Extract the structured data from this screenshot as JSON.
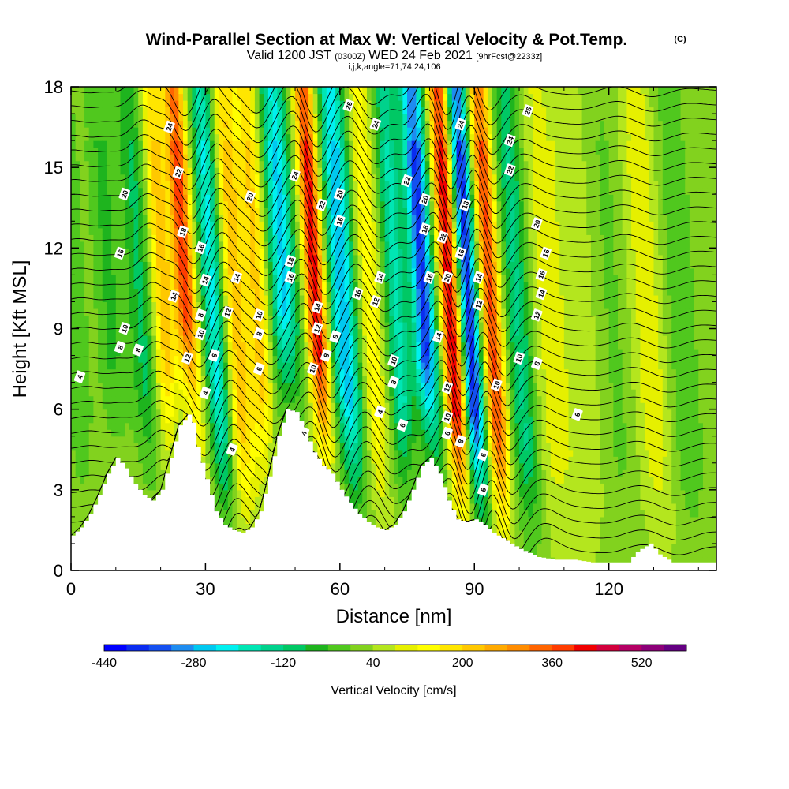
{
  "header": {
    "title": "Wind-Parallel Section at Max W: Vertical Velocity & Pot.Temp.",
    "copyright_mark": "(C)",
    "valid_prefix": "Valid 1200 JST",
    "valid_zulu": "(0300Z)",
    "valid_date": "WED 24 Feb 2021",
    "forecast_info": "[9hrFcst@2233z]",
    "indices": "i,j,k,angle=71,74,24,106"
  },
  "colorbar": {
    "label": "Vertical Velocity [cm/s]",
    "min": -440,
    "step": 40,
    "tick_labels": [
      "-440",
      "-280",
      "-120",
      "40",
      "200",
      "360",
      "520"
    ],
    "colors": [
      "#0000ff",
      "#0a2cf0",
      "#1450f0",
      "#1e8cf0",
      "#00c8f0",
      "#00f0f0",
      "#00e6b4",
      "#00d28c",
      "#00c864",
      "#1eb41e",
      "#50c81e",
      "#82d21e",
      "#b4e61e",
      "#e6f000",
      "#ffff00",
      "#ffe600",
      "#ffc800",
      "#ffaa00",
      "#ff8c00",
      "#ff6400",
      "#ff3c00",
      "#f00000",
      "#d2003c",
      "#b40064",
      "#8c0078",
      "#640082"
    ]
  },
  "chart_data": {
    "type": "heatmap",
    "title": "Wind-Parallel Section at Max W: Vertical Velocity & Pot.Temp.",
    "xlabel": "Distance [nm]",
    "ylabel": "Height [Kft MSL]",
    "xlim": [
      0,
      144
    ],
    "ylim": [
      0,
      18
    ],
    "x_ticks": [
      0,
      30,
      60,
      90,
      120
    ],
    "y_ticks": [
      0,
      3,
      6,
      9,
      12,
      15,
      18
    ],
    "fill_variable": "Vertical Velocity [cm/s]",
    "contour_variable": "Pot.Temp.",
    "terrain_kft": [
      [
        0,
        1.3
      ],
      [
        2,
        1.6
      ],
      [
        4,
        2.1
      ],
      [
        6,
        2.8
      ],
      [
        8,
        3.6
      ],
      [
        10,
        4.2
      ],
      [
        12,
        3.8
      ],
      [
        14,
        3.2
      ],
      [
        16,
        2.8
      ],
      [
        18,
        2.6
      ],
      [
        20,
        3.0
      ],
      [
        22,
        4.2
      ],
      [
        24,
        5.4
      ],
      [
        26,
        5.8
      ],
      [
        27,
        5.5
      ],
      [
        28,
        4.6
      ],
      [
        30,
        3.4
      ],
      [
        32,
        2.2
      ],
      [
        34,
        1.7
      ],
      [
        36,
        1.5
      ],
      [
        38,
        1.4
      ],
      [
        40,
        1.6
      ],
      [
        42,
        2.2
      ],
      [
        44,
        3.5
      ],
      [
        46,
        5.0
      ],
      [
        48,
        6.0
      ],
      [
        50,
        5.9
      ],
      [
        52,
        5.2
      ],
      [
        54,
        4.4
      ],
      [
        56,
        3.9
      ],
      [
        58,
        3.6
      ],
      [
        60,
        3.0
      ],
      [
        62,
        2.5
      ],
      [
        64,
        2.1
      ],
      [
        66,
        1.8
      ],
      [
        68,
        1.6
      ],
      [
        70,
        1.5
      ],
      [
        72,
        1.7
      ],
      [
        74,
        2.2
      ],
      [
        76,
        3.0
      ],
      [
        78,
        3.9
      ],
      [
        80,
        4.2
      ],
      [
        82,
        3.6
      ],
      [
        84,
        2.6
      ],
      [
        86,
        1.9
      ],
      [
        88,
        1.8
      ],
      [
        90,
        1.9
      ],
      [
        92,
        1.7
      ],
      [
        94,
        1.4
      ],
      [
        96,
        1.2
      ],
      [
        98,
        1.0
      ],
      [
        100,
        0.8
      ],
      [
        104,
        0.5
      ],
      [
        108,
        0.4
      ],
      [
        112,
        0.4
      ],
      [
        116,
        0.3
      ],
      [
        120,
        0.3
      ],
      [
        124,
        0.3
      ],
      [
        126,
        0.7
      ],
      [
        129,
        1.0
      ],
      [
        131,
        0.6
      ],
      [
        134,
        0.3
      ],
      [
        144,
        0.3
      ]
    ],
    "w_bands_cm_s": [
      {
        "x0": 2,
        "amp": -60,
        "w": 3
      },
      {
        "x0": 10,
        "amp": -80,
        "w": 3
      },
      {
        "x0": 17,
        "amp": -120,
        "w": 3
      },
      {
        "x0": 22,
        "amp": 200,
        "w": 2.5
      },
      {
        "x0": 27,
        "amp": 360,
        "w": 2.2
      },
      {
        "x0": 33,
        "amp": -240,
        "w": 2.5
      },
      {
        "x0": 38,
        "amp": 200,
        "w": 2.5
      },
      {
        "x0": 43,
        "amp": 180,
        "w": 2.5
      },
      {
        "x0": 49,
        "amp": -280,
        "w": 3
      },
      {
        "x0": 56,
        "amp": 400,
        "w": 2.2
      },
      {
        "x0": 62,
        "amp": -300,
        "w": 3
      },
      {
        "x0": 68,
        "amp": 120,
        "w": 2.5
      },
      {
        "x0": 74,
        "amp": -200,
        "w": 2.5
      },
      {
        "x0": 80,
        "amp": -400,
        "w": 2.5
      },
      {
        "x0": 86,
        "amp": 420,
        "w": 2.2
      },
      {
        "x0": 90,
        "amp": -420,
        "w": 2.2
      },
      {
        "x0": 95,
        "amp": 340,
        "w": 2.2
      },
      {
        "x0": 101,
        "amp": -160,
        "w": 3
      },
      {
        "x0": 107,
        "amp": 60,
        "w": 4
      },
      {
        "x0": 114,
        "amp": 40,
        "w": 5
      },
      {
        "x0": 122,
        "amp": -40,
        "w": 4
      },
      {
        "x0": 130,
        "amp": 80,
        "w": 4
      },
      {
        "x0": 137,
        "amp": -60,
        "w": 4
      }
    ],
    "contour_labels": [
      {
        "x": 22,
        "y": 16.5,
        "v": "24"
      },
      {
        "x": 24,
        "y": 14.8,
        "v": "22"
      },
      {
        "x": 12,
        "y": 14.0,
        "v": "20"
      },
      {
        "x": 11,
        "y": 11.8,
        "v": "16"
      },
      {
        "x": 25,
        "y": 12.6,
        "v": "18"
      },
      {
        "x": 29,
        "y": 12.0,
        "v": "16"
      },
      {
        "x": 30,
        "y": 10.8,
        "v": "14"
      },
      {
        "x": 23,
        "y": 10.2,
        "v": "14"
      },
      {
        "x": 12,
        "y": 9.0,
        "v": "10"
      },
      {
        "x": 11,
        "y": 8.3,
        "v": "8"
      },
      {
        "x": 15,
        "y": 8.2,
        "v": "8"
      },
      {
        "x": 2,
        "y": 7.2,
        "v": "4"
      },
      {
        "x": 26,
        "y": 7.9,
        "v": "12"
      },
      {
        "x": 29,
        "y": 9.5,
        "v": "8"
      },
      {
        "x": 29,
        "y": 8.8,
        "v": "10"
      },
      {
        "x": 32,
        "y": 8.0,
        "v": "6"
      },
      {
        "x": 30,
        "y": 6.6,
        "v": "4"
      },
      {
        "x": 35,
        "y": 9.6,
        "v": "12"
      },
      {
        "x": 36,
        "y": 4.5,
        "v": "4"
      },
      {
        "x": 40,
        "y": 13.9,
        "v": "20"
      },
      {
        "x": 37,
        "y": 10.9,
        "v": "14"
      },
      {
        "x": 42,
        "y": 9.5,
        "v": "10"
      },
      {
        "x": 42,
        "y": 8.8,
        "v": "8"
      },
      {
        "x": 42,
        "y": 7.5,
        "v": "6"
      },
      {
        "x": 50,
        "y": 14.7,
        "v": "24"
      },
      {
        "x": 49,
        "y": 11.5,
        "v": "18"
      },
      {
        "x": 49,
        "y": 10.9,
        "v": "16"
      },
      {
        "x": 56,
        "y": 13.6,
        "v": "22"
      },
      {
        "x": 60,
        "y": 14.0,
        "v": "20"
      },
      {
        "x": 60,
        "y": 13.0,
        "v": "16"
      },
      {
        "x": 55,
        "y": 9.8,
        "v": "14"
      },
      {
        "x": 55,
        "y": 9.0,
        "v": "12"
      },
      {
        "x": 59,
        "y": 8.7,
        "v": "8"
      },
      {
        "x": 54,
        "y": 7.5,
        "v": "10"
      },
      {
        "x": 57,
        "y": 8.0,
        "v": "8"
      },
      {
        "x": 52,
        "y": 5.1,
        "v": "4"
      },
      {
        "x": 62,
        "y": 17.3,
        "v": "26"
      },
      {
        "x": 68,
        "y": 16.6,
        "v": "24"
      },
      {
        "x": 75,
        "y": 14.5,
        "v": "22"
      },
      {
        "x": 64,
        "y": 10.3,
        "v": "16"
      },
      {
        "x": 69,
        "y": 10.9,
        "v": "14"
      },
      {
        "x": 68,
        "y": 10.0,
        "v": "12"
      },
      {
        "x": 72,
        "y": 7.8,
        "v": "10"
      },
      {
        "x": 72,
        "y": 7.0,
        "v": "8"
      },
      {
        "x": 69,
        "y": 5.9,
        "v": "4"
      },
      {
        "x": 74,
        "y": 5.4,
        "v": "6"
      },
      {
        "x": 79,
        "y": 13.8,
        "v": "20"
      },
      {
        "x": 79,
        "y": 12.7,
        "v": "18"
      },
      {
        "x": 83,
        "y": 12.4,
        "v": "22"
      },
      {
        "x": 80,
        "y": 10.9,
        "v": "16"
      },
      {
        "x": 84,
        "y": 10.9,
        "v": "20"
      },
      {
        "x": 87,
        "y": 16.6,
        "v": "24"
      },
      {
        "x": 88,
        "y": 13.6,
        "v": "18"
      },
      {
        "x": 87,
        "y": 11.8,
        "v": "16"
      },
      {
        "x": 91,
        "y": 10.9,
        "v": "14"
      },
      {
        "x": 91,
        "y": 9.9,
        "v": "12"
      },
      {
        "x": 82,
        "y": 8.7,
        "v": "14"
      },
      {
        "x": 84,
        "y": 6.8,
        "v": "12"
      },
      {
        "x": 84,
        "y": 5.7,
        "v": "10"
      },
      {
        "x": 84,
        "y": 5.1,
        "v": "6"
      },
      {
        "x": 87,
        "y": 4.8,
        "v": "8"
      },
      {
        "x": 95,
        "y": 6.9,
        "v": "10"
      },
      {
        "x": 92,
        "y": 4.3,
        "v": "6"
      },
      {
        "x": 92,
        "y": 3.0,
        "v": "6"
      },
      {
        "x": 98,
        "y": 16.0,
        "v": "24"
      },
      {
        "x": 102,
        "y": 17.1,
        "v": "26"
      },
      {
        "x": 98,
        "y": 14.9,
        "v": "22"
      },
      {
        "x": 104,
        "y": 12.9,
        "v": "20"
      },
      {
        "x": 106,
        "y": 11.8,
        "v": "16"
      },
      {
        "x": 105,
        "y": 11.0,
        "v": "16"
      },
      {
        "x": 105,
        "y": 10.3,
        "v": "14"
      },
      {
        "x": 104,
        "y": 9.5,
        "v": "12"
      },
      {
        "x": 100,
        "y": 7.9,
        "v": "10"
      },
      {
        "x": 104,
        "y": 7.7,
        "v": "8"
      },
      {
        "x": 113,
        "y": 5.8,
        "v": "6"
      }
    ]
  }
}
